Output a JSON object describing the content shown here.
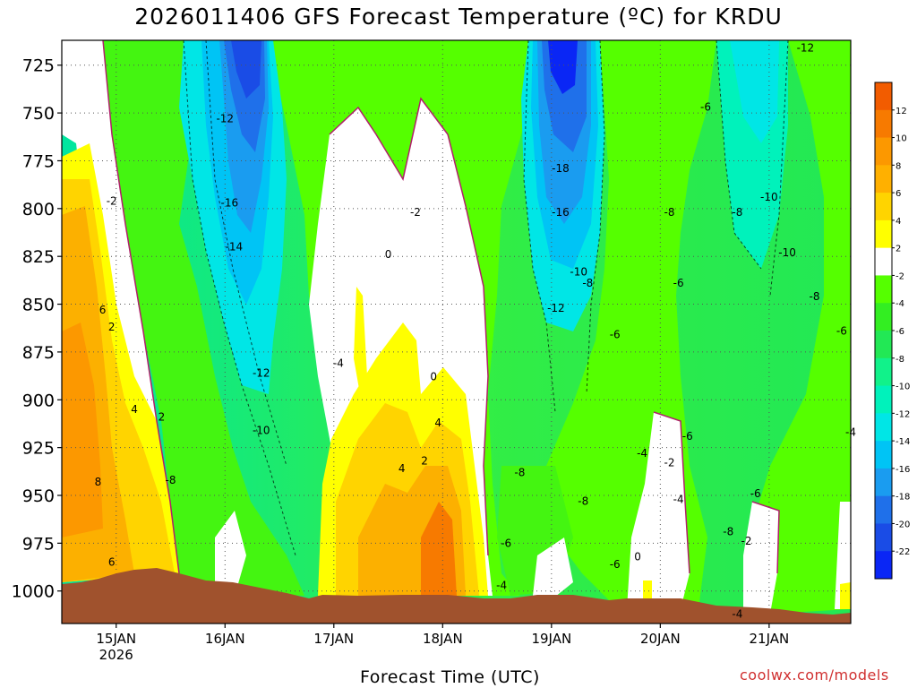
{
  "title": "2026011406 GFS Forecast Temperature (ºC) for KRDU",
  "credit": "coolwx.com/models",
  "chart_data": {
    "type": "heatmap",
    "title": "2026011406 GFS Forecast Temperature (ºC) for KRDU",
    "xlabel": "Forecast Time (UTC)",
    "ylabel": "",
    "x_ticks": [
      {
        "label": "15JAN",
        "sub": "2026",
        "hour": 18
      },
      {
        "label": "16JAN",
        "sub": "",
        "hour": 42
      },
      {
        "label": "17JAN",
        "sub": "",
        "hour": 66
      },
      {
        "label": "18JAN",
        "sub": "",
        "hour": 90
      },
      {
        "label": "19JAN",
        "sub": "",
        "hour": 114
      },
      {
        "label": "20JAN",
        "sub": "",
        "hour": 138
      },
      {
        "label": "21JAN",
        "sub": "",
        "hour": 162
      }
    ],
    "xlim_hours": [
      6,
      180
    ],
    "y_ticks": [
      725,
      750,
      775,
      800,
      825,
      850,
      875,
      900,
      925,
      950,
      975,
      1000
    ],
    "ylim": [
      712,
      1017
    ],
    "y_unit": "hPa",
    "colorbar_ticks": [
      12,
      10,
      8,
      6,
      4,
      2,
      -2,
      -4,
      -6,
      -8,
      -10,
      -12,
      -14,
      -16,
      -18,
      -20,
      -22
    ],
    "colorbar_colors": [
      "#f25c00",
      "#f77a00",
      "#fc9800",
      "#ffb000",
      "#ffd400",
      "#ffff00",
      "#ffffff",
      "#55ff00",
      "#33ee22",
      "#22e855",
      "#11f28a",
      "#00f2bb",
      "#00e6e6",
      "#00c4f5",
      "#1a9cf0",
      "#1f70ea",
      "#1a4ce6",
      "#0a26f5"
    ],
    "contour_labels": [
      {
        "t": "-12",
        "h": 170,
        "p": 716
      },
      {
        "t": "-12",
        "h": 42,
        "p": 753
      },
      {
        "t": "-6",
        "h": 148,
        "p": 747
      },
      {
        "t": "-2",
        "h": 17,
        "p": 796
      },
      {
        "t": "-16",
        "h": 43,
        "p": 797
      },
      {
        "t": "-18",
        "h": 116,
        "p": 779
      },
      {
        "t": "-10",
        "h": 162,
        "p": 794
      },
      {
        "t": "-2",
        "h": 84,
        "p": 802
      },
      {
        "t": "-16",
        "h": 116,
        "p": 802
      },
      {
        "t": "-8",
        "h": 140,
        "p": 802
      },
      {
        "t": "-8",
        "h": 155,
        "p": 802
      },
      {
        "t": "-14",
        "h": 44,
        "p": 820
      },
      {
        "t": "0",
        "h": 78,
        "p": 824
      },
      {
        "t": "-10",
        "h": 166,
        "p": 823
      },
      {
        "t": "-10",
        "h": 120,
        "p": 833
      },
      {
        "t": "-8",
        "h": 122,
        "p": 839
      },
      {
        "t": "-6",
        "h": 142,
        "p": 839
      },
      {
        "t": "-8",
        "h": 172,
        "p": 846
      },
      {
        "t": "-12",
        "h": 115,
        "p": 852
      },
      {
        "t": "6",
        "h": 15,
        "p": 853
      },
      {
        "t": "-6",
        "h": 178,
        "p": 864
      },
      {
        "t": "2",
        "h": 17,
        "p": 862
      },
      {
        "t": "-6",
        "h": 128,
        "p": 866
      },
      {
        "t": "-4",
        "h": 67,
        "p": 881
      },
      {
        "t": "-12",
        "h": 50,
        "p": 886
      },
      {
        "t": "0",
        "h": 88,
        "p": 888
      },
      {
        "t": "4",
        "h": 22,
        "p": 905
      },
      {
        "t": "2",
        "h": 28,
        "p": 909
      },
      {
        "t": "4",
        "h": 89,
        "p": 912
      },
      {
        "t": "-10",
        "h": 50,
        "p": 916
      },
      {
        "t": "-4",
        "h": 180,
        "p": 917
      },
      {
        "t": "-6",
        "h": 144,
        "p": 919
      },
      {
        "t": "-4",
        "h": 134,
        "p": 928
      },
      {
        "t": "2",
        "h": 86,
        "p": 932
      },
      {
        "t": "-2",
        "h": 140,
        "p": 933
      },
      {
        "t": "4",
        "h": 81,
        "p": 936
      },
      {
        "t": "-8",
        "h": 107,
        "p": 938
      },
      {
        "t": "-8",
        "h": 30,
        "p": 942
      },
      {
        "t": "8",
        "h": 14,
        "p": 943
      },
      {
        "t": "-6",
        "h": 159,
        "p": 949
      },
      {
        "t": "-4",
        "h": 142,
        "p": 952
      },
      {
        "t": "-8",
        "h": 121,
        "p": 953
      },
      {
        "t": "-8",
        "h": 153,
        "p": 969
      },
      {
        "t": "-2",
        "h": 157,
        "p": 974
      },
      {
        "t": "-6",
        "h": 104,
        "p": 975
      },
      {
        "t": "0",
        "h": 133,
        "p": 982
      },
      {
        "t": "6",
        "h": 17,
        "p": 985
      },
      {
        "t": "-6",
        "h": 128,
        "p": 986
      },
      {
        "t": "-4",
        "h": 103,
        "p": 997
      },
      {
        "t": "-4",
        "h": 155,
        "p": 1012
      }
    ]
  }
}
